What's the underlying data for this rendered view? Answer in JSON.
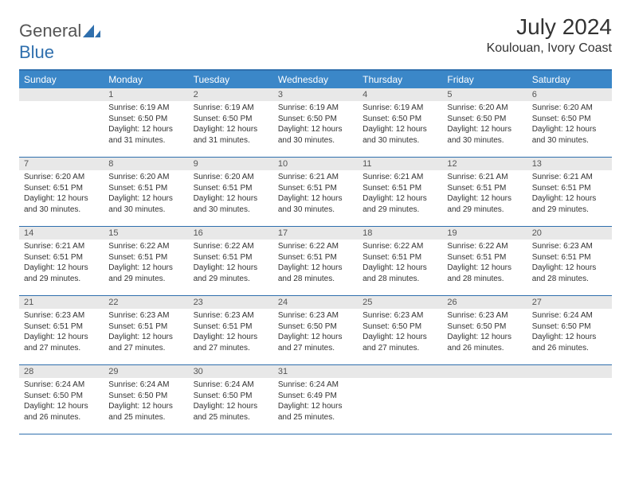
{
  "brand": {
    "part1": "General",
    "part2": "Blue"
  },
  "colors": {
    "accent": "#2f6fad",
    "header_bg": "#3b87c8",
    "header_text": "#ffffff",
    "daynum_bg": "#e8e8e8",
    "daynum_text": "#555555",
    "body_text": "#333333",
    "background": "#ffffff"
  },
  "typography": {
    "title_fontsize": 28,
    "location_fontsize": 16,
    "weekday_fontsize": 12,
    "daynum_fontsize": 11,
    "body_fontsize": 10
  },
  "title": "July 2024",
  "location": "Koulouan, Ivory Coast",
  "weekdays": [
    "Sunday",
    "Monday",
    "Tuesday",
    "Wednesday",
    "Thursday",
    "Friday",
    "Saturday"
  ],
  "layout": {
    "columns": 7,
    "rows": 5,
    "first_weekday_index": 1
  },
  "weeks": [
    [
      {
        "n": "",
        "sunrise": "",
        "sunset": "",
        "daylight": ""
      },
      {
        "n": "1",
        "sunrise": "Sunrise: 6:19 AM",
        "sunset": "Sunset: 6:50 PM",
        "daylight": "Daylight: 12 hours and 31 minutes."
      },
      {
        "n": "2",
        "sunrise": "Sunrise: 6:19 AM",
        "sunset": "Sunset: 6:50 PM",
        "daylight": "Daylight: 12 hours and 31 minutes."
      },
      {
        "n": "3",
        "sunrise": "Sunrise: 6:19 AM",
        "sunset": "Sunset: 6:50 PM",
        "daylight": "Daylight: 12 hours and 30 minutes."
      },
      {
        "n": "4",
        "sunrise": "Sunrise: 6:19 AM",
        "sunset": "Sunset: 6:50 PM",
        "daylight": "Daylight: 12 hours and 30 minutes."
      },
      {
        "n": "5",
        "sunrise": "Sunrise: 6:20 AM",
        "sunset": "Sunset: 6:50 PM",
        "daylight": "Daylight: 12 hours and 30 minutes."
      },
      {
        "n": "6",
        "sunrise": "Sunrise: 6:20 AM",
        "sunset": "Sunset: 6:50 PM",
        "daylight": "Daylight: 12 hours and 30 minutes."
      }
    ],
    [
      {
        "n": "7",
        "sunrise": "Sunrise: 6:20 AM",
        "sunset": "Sunset: 6:51 PM",
        "daylight": "Daylight: 12 hours and 30 minutes."
      },
      {
        "n": "8",
        "sunrise": "Sunrise: 6:20 AM",
        "sunset": "Sunset: 6:51 PM",
        "daylight": "Daylight: 12 hours and 30 minutes."
      },
      {
        "n": "9",
        "sunrise": "Sunrise: 6:20 AM",
        "sunset": "Sunset: 6:51 PM",
        "daylight": "Daylight: 12 hours and 30 minutes."
      },
      {
        "n": "10",
        "sunrise": "Sunrise: 6:21 AM",
        "sunset": "Sunset: 6:51 PM",
        "daylight": "Daylight: 12 hours and 30 minutes."
      },
      {
        "n": "11",
        "sunrise": "Sunrise: 6:21 AM",
        "sunset": "Sunset: 6:51 PM",
        "daylight": "Daylight: 12 hours and 29 minutes."
      },
      {
        "n": "12",
        "sunrise": "Sunrise: 6:21 AM",
        "sunset": "Sunset: 6:51 PM",
        "daylight": "Daylight: 12 hours and 29 minutes."
      },
      {
        "n": "13",
        "sunrise": "Sunrise: 6:21 AM",
        "sunset": "Sunset: 6:51 PM",
        "daylight": "Daylight: 12 hours and 29 minutes."
      }
    ],
    [
      {
        "n": "14",
        "sunrise": "Sunrise: 6:21 AM",
        "sunset": "Sunset: 6:51 PM",
        "daylight": "Daylight: 12 hours and 29 minutes."
      },
      {
        "n": "15",
        "sunrise": "Sunrise: 6:22 AM",
        "sunset": "Sunset: 6:51 PM",
        "daylight": "Daylight: 12 hours and 29 minutes."
      },
      {
        "n": "16",
        "sunrise": "Sunrise: 6:22 AM",
        "sunset": "Sunset: 6:51 PM",
        "daylight": "Daylight: 12 hours and 29 minutes."
      },
      {
        "n": "17",
        "sunrise": "Sunrise: 6:22 AM",
        "sunset": "Sunset: 6:51 PM",
        "daylight": "Daylight: 12 hours and 28 minutes."
      },
      {
        "n": "18",
        "sunrise": "Sunrise: 6:22 AM",
        "sunset": "Sunset: 6:51 PM",
        "daylight": "Daylight: 12 hours and 28 minutes."
      },
      {
        "n": "19",
        "sunrise": "Sunrise: 6:22 AM",
        "sunset": "Sunset: 6:51 PM",
        "daylight": "Daylight: 12 hours and 28 minutes."
      },
      {
        "n": "20",
        "sunrise": "Sunrise: 6:23 AM",
        "sunset": "Sunset: 6:51 PM",
        "daylight": "Daylight: 12 hours and 28 minutes."
      }
    ],
    [
      {
        "n": "21",
        "sunrise": "Sunrise: 6:23 AM",
        "sunset": "Sunset: 6:51 PM",
        "daylight": "Daylight: 12 hours and 27 minutes."
      },
      {
        "n": "22",
        "sunrise": "Sunrise: 6:23 AM",
        "sunset": "Sunset: 6:51 PM",
        "daylight": "Daylight: 12 hours and 27 minutes."
      },
      {
        "n": "23",
        "sunrise": "Sunrise: 6:23 AM",
        "sunset": "Sunset: 6:51 PM",
        "daylight": "Daylight: 12 hours and 27 minutes."
      },
      {
        "n": "24",
        "sunrise": "Sunrise: 6:23 AM",
        "sunset": "Sunset: 6:50 PM",
        "daylight": "Daylight: 12 hours and 27 minutes."
      },
      {
        "n": "25",
        "sunrise": "Sunrise: 6:23 AM",
        "sunset": "Sunset: 6:50 PM",
        "daylight": "Daylight: 12 hours and 27 minutes."
      },
      {
        "n": "26",
        "sunrise": "Sunrise: 6:23 AM",
        "sunset": "Sunset: 6:50 PM",
        "daylight": "Daylight: 12 hours and 26 minutes."
      },
      {
        "n": "27",
        "sunrise": "Sunrise: 6:24 AM",
        "sunset": "Sunset: 6:50 PM",
        "daylight": "Daylight: 12 hours and 26 minutes."
      }
    ],
    [
      {
        "n": "28",
        "sunrise": "Sunrise: 6:24 AM",
        "sunset": "Sunset: 6:50 PM",
        "daylight": "Daylight: 12 hours and 26 minutes."
      },
      {
        "n": "29",
        "sunrise": "Sunrise: 6:24 AM",
        "sunset": "Sunset: 6:50 PM",
        "daylight": "Daylight: 12 hours and 25 minutes."
      },
      {
        "n": "30",
        "sunrise": "Sunrise: 6:24 AM",
        "sunset": "Sunset: 6:50 PM",
        "daylight": "Daylight: 12 hours and 25 minutes."
      },
      {
        "n": "31",
        "sunrise": "Sunrise: 6:24 AM",
        "sunset": "Sunset: 6:49 PM",
        "daylight": "Daylight: 12 hours and 25 minutes."
      },
      {
        "n": "",
        "sunrise": "",
        "sunset": "",
        "daylight": ""
      },
      {
        "n": "",
        "sunrise": "",
        "sunset": "",
        "daylight": ""
      },
      {
        "n": "",
        "sunrise": "",
        "sunset": "",
        "daylight": ""
      }
    ]
  ]
}
